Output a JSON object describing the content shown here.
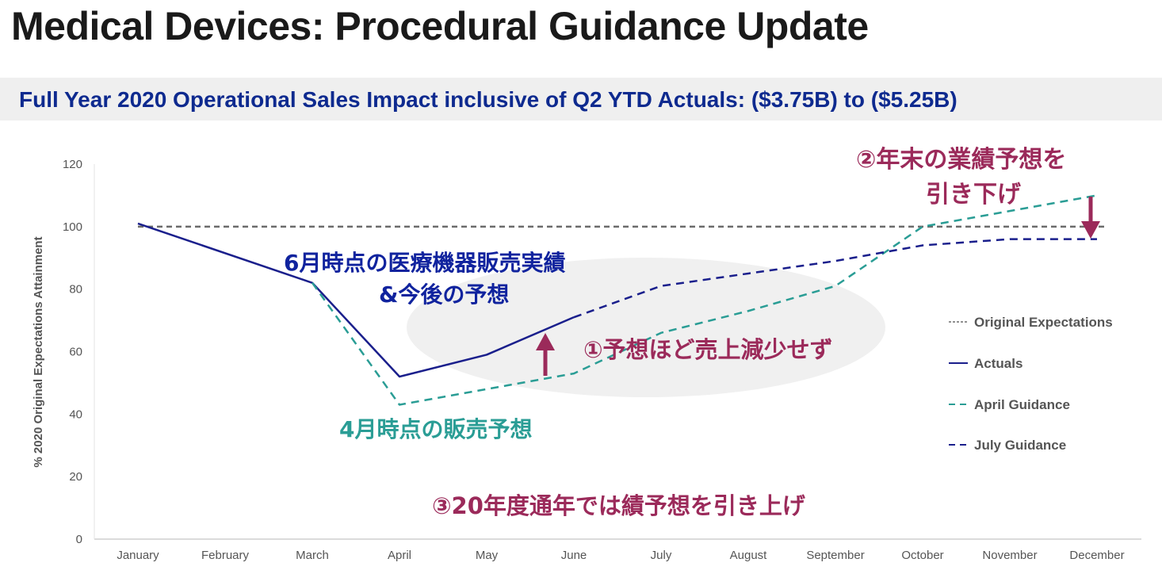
{
  "header": {
    "title": "Medical Devices: Procedural Guidance Update",
    "subtitle": "Full Year 2020 Operational Sales Impact inclusive of Q2 YTD Actuals: ($3.75B) to ($5.25B)"
  },
  "colors": {
    "original": "#6b6b6b",
    "actuals": "#1a1f8c",
    "april": "#2a9d95",
    "july": "#1a1f8c",
    "annotation_red": "#9b2a5a",
    "annotation_blue": "#10239e",
    "annotation_teal": "#2a9d95"
  },
  "annotations": {
    "june_line1": "6月時点の医療機器販売実績",
    "june_line2": "&今後の予想",
    "april_forecast": "4月時点の販売予想",
    "point1": "①予想ほど売上減少せず",
    "point2_line1": "②年末の業績予想を",
    "point2_line2": "引き下げ",
    "point3": "③20年度通年では績予想を引き上げ"
  },
  "chart_data": {
    "type": "line",
    "x": [
      "January",
      "February",
      "March",
      "April",
      "May",
      "June",
      "July",
      "August",
      "September",
      "October",
      "November",
      "December"
    ],
    "ylabel": "% 2020 Original Expectations Attainment",
    "xlabel": "",
    "ylim": [
      0,
      120
    ],
    "yticks": [
      0,
      20,
      40,
      60,
      80,
      100,
      120
    ],
    "grid": false,
    "legend_position": "right",
    "series": [
      {
        "name": "Original Expectations",
        "style": "dashed-fine",
        "color": "#6b6b6b",
        "values": [
          100,
          100,
          100,
          100,
          100,
          100,
          100,
          100,
          100,
          100,
          100,
          100
        ]
      },
      {
        "name": "Actuals",
        "style": "solid",
        "color": "#1a1f8c",
        "values": [
          101,
          null,
          82,
          52,
          59,
          71,
          null,
          null,
          null,
          null,
          null,
          null
        ],
        "points": [
          [
            0,
            101
          ],
          [
            2,
            82
          ],
          [
            3,
            52
          ],
          [
            4,
            59
          ],
          [
            5,
            71
          ]
        ]
      },
      {
        "name": "April Guidance",
        "style": "dashed",
        "color": "#2a9d95",
        "points": [
          [
            2,
            82
          ],
          [
            3,
            43
          ],
          [
            4,
            48
          ],
          [
            5,
            53
          ],
          [
            6,
            66
          ],
          [
            7,
            73
          ],
          [
            8,
            81
          ],
          [
            9,
            100
          ],
          [
            10,
            105
          ],
          [
            11,
            110
          ]
        ]
      },
      {
        "name": "July Guidance",
        "style": "dashed",
        "color": "#1a1f8c",
        "points": [
          [
            5,
            71
          ],
          [
            6,
            81
          ],
          [
            7,
            85
          ],
          [
            8,
            89
          ],
          [
            9,
            94
          ],
          [
            10,
            96
          ],
          [
            11,
            96
          ]
        ]
      }
    ]
  }
}
